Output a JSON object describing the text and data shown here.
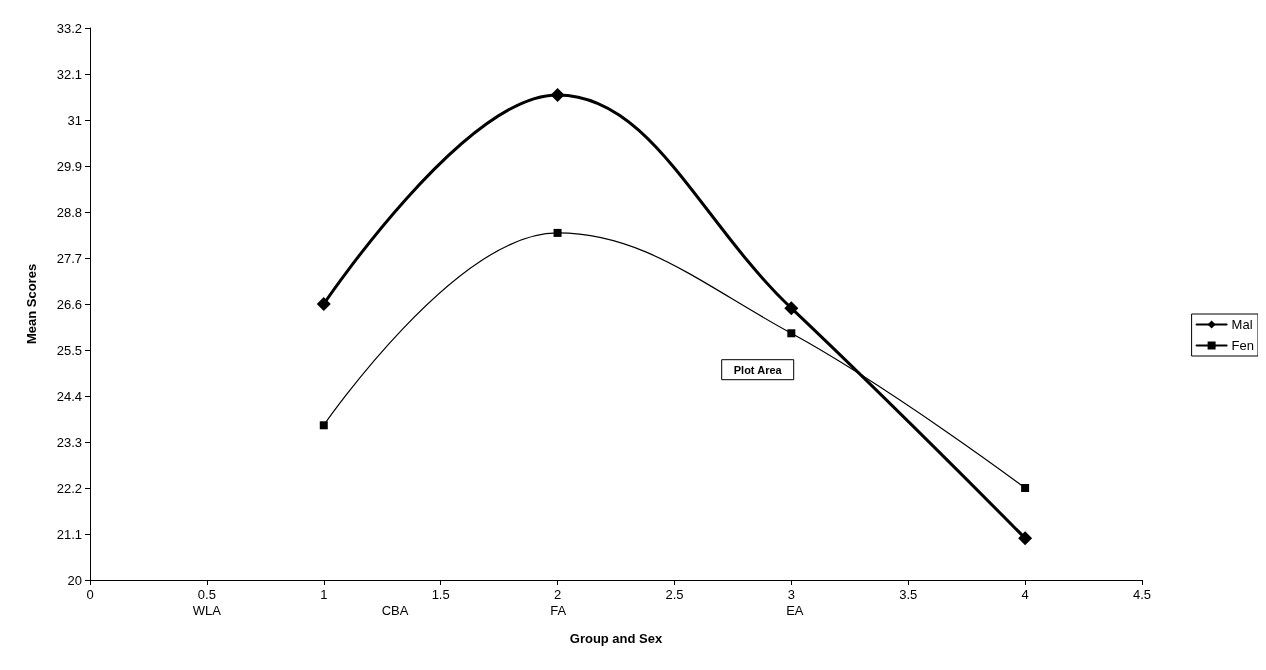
{
  "chart_data": {
    "type": "line",
    "xlabel": "Group and Sex",
    "ylabel": "Mean Scores",
    "x": [
      1,
      2,
      3,
      4
    ],
    "series": [
      {
        "name": "Mal",
        "color": "#000000",
        "values": [
          26.6,
          31.6,
          26.5,
          21.0
        ],
        "marker": "diamond"
      },
      {
        "name": "Fen",
        "color": "#000000",
        "values": [
          23.7,
          28.3,
          25.9,
          22.2
        ],
        "marker": "square"
      }
    ],
    "xlim": [
      0,
      4.5
    ],
    "xticks": [
      0,
      0.5,
      1,
      1.5,
      2,
      2.5,
      3,
      3.5,
      4,
      4.5
    ],
    "ylim": [
      20,
      33.2
    ],
    "yticks": [
      20,
      21.1,
      22.2,
      23.3,
      24.4,
      25.5,
      26.6,
      27.7,
      28.8,
      29.9,
      31,
      32.1,
      33.2
    ],
    "annotations": [
      "WLA",
      "CBA",
      "FA",
      "EA",
      "Plot Area"
    ],
    "grid": false,
    "legend": "right",
    "line_style": "solid"
  }
}
